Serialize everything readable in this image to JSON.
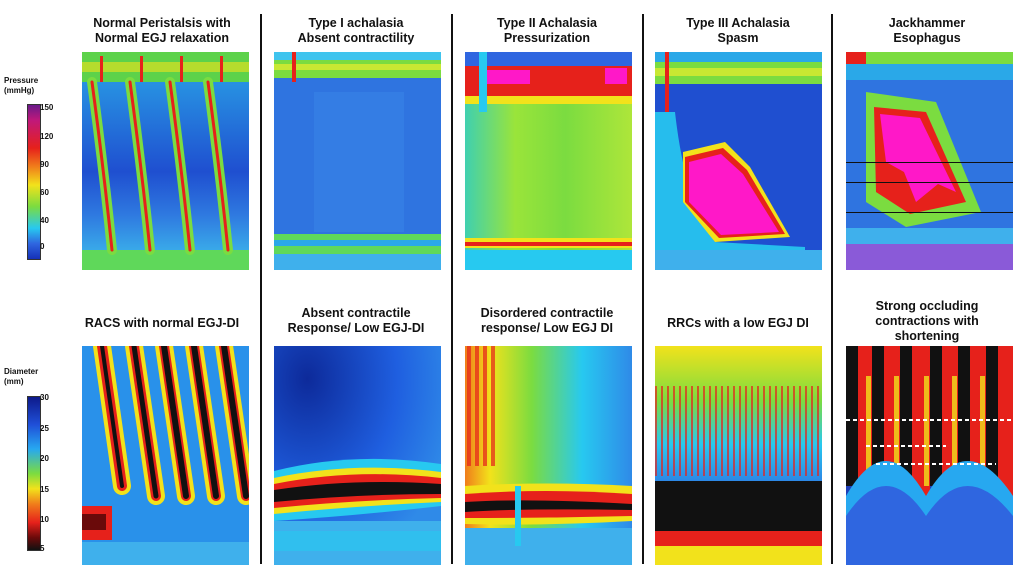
{
  "pressure_scale": {
    "title": "Pressure\n(mmHg)",
    "ticks": [
      "150",
      "120",
      "90",
      "60",
      "40",
      "0"
    ]
  },
  "diameter_scale": {
    "title": "Diameter\n(mm)",
    "ticks": [
      "30",
      "25",
      "20",
      "15",
      "10",
      "5"
    ]
  },
  "columns": [
    {
      "top_title": "Normal Peristalsis with\nNormal EGJ relaxation",
      "bottom_title": "RACS with normal EGJ-DI"
    },
    {
      "top_title": "Type I achalasia\nAbsent contractility",
      "bottom_title": "Absent contractile\nResponse/ Low EGJ-DI"
    },
    {
      "top_title": "Type II Achalasia\nPressurization",
      "bottom_title": "Disordered contractile\nresponse/ Low EGJ DI"
    },
    {
      "top_title": "Type III Achalasia\nSpasm",
      "bottom_title": "RRCs with a low EGJ DI"
    },
    {
      "top_title": "Jackhammer\nEsophagus",
      "bottom_title": "Strong occluding\ncontractions with\nshortening"
    }
  ],
  "colors": {
    "deep_blue": "#1530b8",
    "mid_blue": "#2f66e0",
    "cyan": "#27c9f0",
    "green": "#7bdc40",
    "yellow": "#f2e21b",
    "red": "#e6211b",
    "magenta": "#ff18c8",
    "black": "#111111"
  }
}
